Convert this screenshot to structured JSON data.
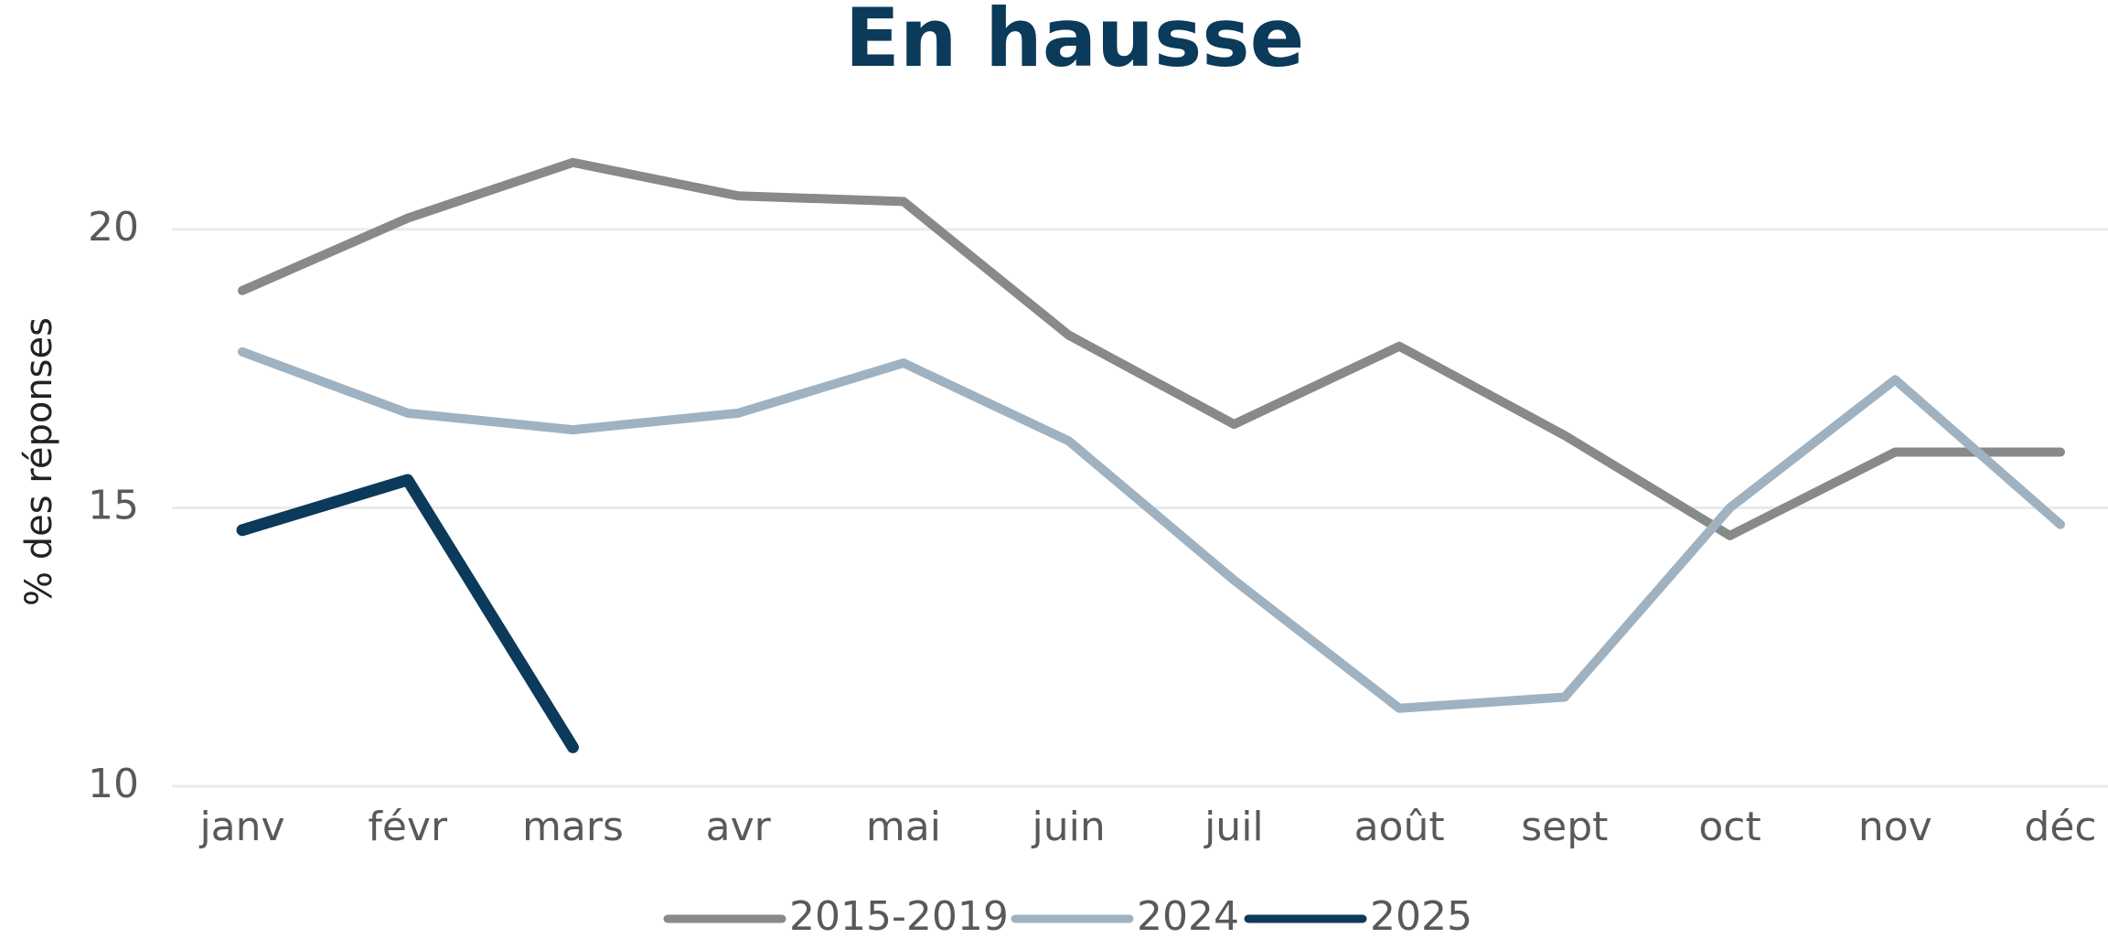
{
  "chart_data": {
    "type": "line",
    "title": "En hausse",
    "ylabel": "% des réponses",
    "categories": [
      "janv",
      "févr",
      "mars",
      "avr",
      "mai",
      "juin",
      "juil",
      "août",
      "sept",
      "oct",
      "nov",
      "déc"
    ],
    "series": [
      {
        "name": "2015-2019",
        "color": "#878a89",
        "values": [
          18.9,
          20.2,
          21.2,
          20.6,
          20.5,
          18.1,
          16.5,
          17.9,
          16.3,
          14.5,
          16.0,
          16.0
        ]
      },
      {
        "name": "2024",
        "color": "#9fb2c1",
        "values": [
          17.8,
          16.7,
          16.4,
          16.7,
          17.6,
          16.2,
          13.7,
          11.4,
          11.6,
          15.0,
          17.3,
          14.7
        ]
      },
      {
        "name": "2025",
        "color": "#0b3a5a",
        "values": [
          14.6,
          15.5,
          10.7,
          null,
          null,
          null,
          null,
          null,
          null,
          null,
          null,
          null
        ]
      }
    ],
    "ylim": [
      10,
      22
    ],
    "yticks": [
      10,
      15,
      20
    ],
    "grid": true,
    "legend": "bottom"
  }
}
